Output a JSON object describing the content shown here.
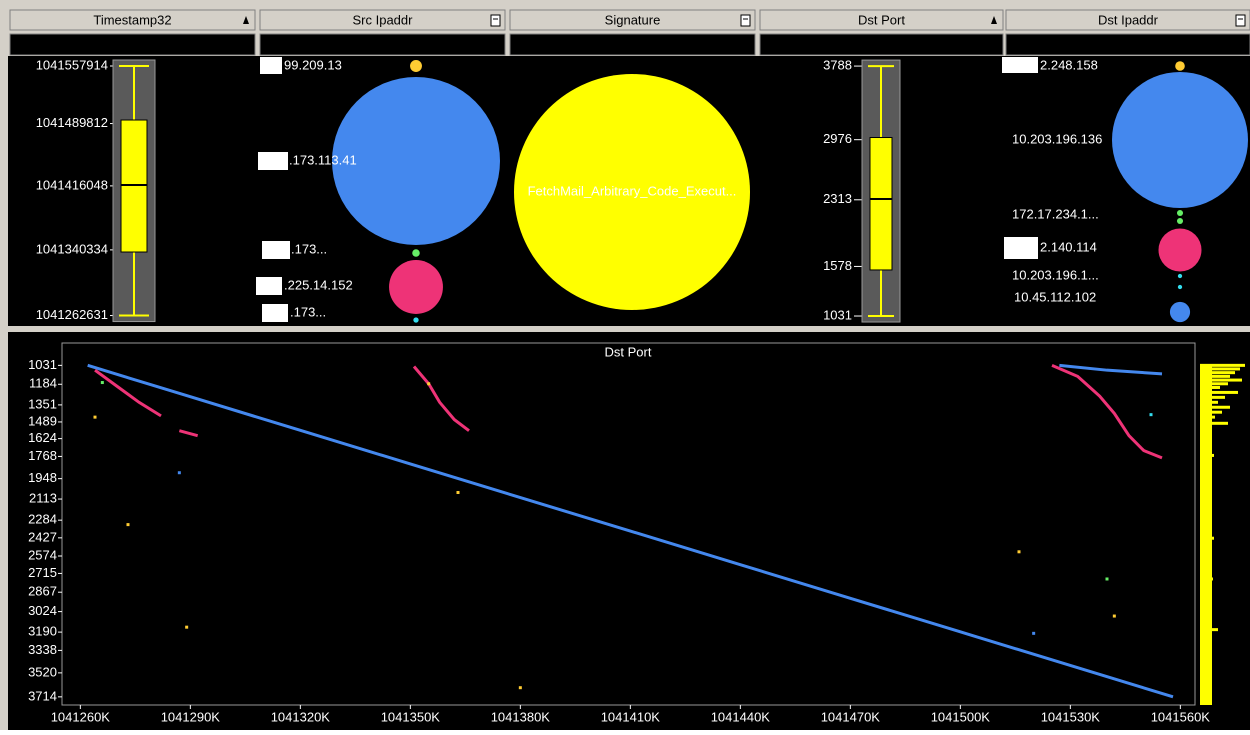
{
  "columns": [
    {
      "header": "Timestamp32",
      "icon": "sort"
    },
    {
      "header": "Src Ipaddr",
      "icon": "menu"
    },
    {
      "header": "Signature",
      "icon": "menu"
    },
    {
      "header": "Dst Port",
      "icon": "sort"
    },
    {
      "header": "Dst Ipaddr",
      "icon": "menu"
    }
  ],
  "timestamp": {
    "lim": [
      1041255000,
      1041565000
    ],
    "ticks": [
      1041557914,
      1041489812,
      1041416048,
      1041340334,
      1041262631
    ],
    "box": {
      "min": 1041262631,
      "q1": 1041337800,
      "median": 1041417100,
      "q3": 1041494000,
      "max": 1041557914
    }
  },
  "dst_port": {
    "lim": [
      965,
      3855
    ],
    "ticks": [
      3788,
      2976,
      2313,
      1578,
      1031
    ],
    "box": {
      "min": 1031,
      "q1": 1539,
      "median": 2322,
      "q3": 3000,
      "max": 3788
    }
  },
  "src_ipaddr": {
    "labels": [
      "99.209.13",
      ".173.113.41",
      ".173...",
      ".225.14.152",
      ".173..."
    ],
    "circles": [
      {
        "color": "#ffcc33",
        "count": 5
      },
      {
        "color": "#4488ee",
        "count": 1000
      },
      {
        "color": "#66ee66",
        "count": 2
      },
      {
        "color": "#ee3377",
        "count": 103
      },
      {
        "color": "#33ddee",
        "count": 1
      }
    ]
  },
  "signature": {
    "labels": [
      "FetchMail_Arbitrary_Code_Execut..."
    ],
    "circles": [
      {
        "color": "#ffff00",
        "count": 1000
      }
    ]
  },
  "dst_ipaddr": {
    "labels": [
      "2.248.158",
      "10.203.196.136",
      "172.17.234.1...",
      "2.140.114",
      "10.203.196.1...",
      "10.45.112.102"
    ],
    "circles": [
      {
        "color": "#ffcc33",
        "count": 5
      },
      {
        "color": "#4488ee",
        "count": 1000
      },
      {
        "color": "#66ee66",
        "count": 2
      },
      {
        "color": "#66ee66",
        "count": 2
      },
      {
        "color": "#ee3377",
        "count": 100
      },
      {
        "color": "#33ddee",
        "count": 1
      },
      {
        "color": "#33ddee",
        "count": 1
      },
      {
        "color": "#4488ee",
        "count": 22
      }
    ]
  },
  "chart_data": {
    "type": "scatter",
    "title": "Dst Port",
    "xlim": [
      1041255000,
      1041564000
    ],
    "xticks": [
      {
        "value": 1041260000,
        "label": "1041260K"
      },
      {
        "value": 1041290000,
        "label": "1041290K"
      },
      {
        "value": 1041320000,
        "label": "1041320K"
      },
      {
        "value": 1041350000,
        "label": "1041350K"
      },
      {
        "value": 1041380000,
        "label": "1041380K"
      },
      {
        "value": 1041410000,
        "label": "1041410K"
      },
      {
        "value": 1041440000,
        "label": "1041440K"
      },
      {
        "value": 1041470000,
        "label": "1041470K"
      },
      {
        "value": 1041500000,
        "label": "1041500K"
      },
      {
        "value": 1041530000,
        "label": "1041530K"
      },
      {
        "value": 1041560000,
        "label": "1041560K"
      }
    ],
    "ylim": [
      3780,
      850
    ],
    "yticks": [
      1031,
      1184,
      1351,
      1489,
      1624,
      1768,
      1948,
      2113,
      2284,
      2427,
      2574,
      2715,
      2867,
      3024,
      3190,
      3338,
      3520,
      3714
    ],
    "series": [
      {
        "color": "#4488ee",
        "mode": "line",
        "x": [
          1041262000,
          1041290000,
          1041320000,
          1041350000,
          1041380000,
          1041410000,
          1041440000,
          1041470000,
          1041500000,
          1041530000,
          1041558000
        ],
        "y": [
          1031,
          1285,
          1557,
          1829,
          2101,
          2372,
          2644,
          2916,
          3188,
          3460,
          3714
        ]
      },
      {
        "color": "#4488ee",
        "mode": "line",
        "x": [
          1041527000,
          1041540000,
          1041555000
        ],
        "y": [
          1031,
          1070,
          1100
        ]
      },
      {
        "color": "#ee3377",
        "mode": "line",
        "x": [
          1041264000,
          1041270000,
          1041276000,
          1041282000,
          null,
          1041287000,
          1041292000,
          null,
          1041351000,
          1041355000,
          1041358000,
          1041362000,
          1041366000,
          null,
          1041525000,
          1041532000,
          1041538000,
          1041542000,
          1041546000,
          1041550000,
          1041555000
        ],
        "y": [
          1070,
          1200,
          1330,
          1440,
          null,
          1560,
          1600,
          null,
          1040,
          1180,
          1330,
          1470,
          1560,
          null,
          1031,
          1120,
          1280,
          1420,
          1600,
          1720,
          1780
        ]
      },
      {
        "color": "#ffcc33",
        "mode": "points",
        "x": [
          1041264000,
          1041273000,
          1041289000,
          1041355000,
          1041363000,
          1041380000,
          1041516000,
          1041542000
        ],
        "y": [
          1450,
          2320,
          3150,
          1180,
          2060,
          3640,
          2540,
          3060
        ]
      },
      {
        "color": "#66ee66",
        "mode": "points",
        "x": [
          1041266000,
          1041540000
        ],
        "y": [
          1170,
          2760
        ]
      },
      {
        "color": "#33ddee",
        "mode": "points",
        "x": [
          1041552000
        ],
        "y": [
          1430
        ]
      },
      {
        "color": "#4488ee",
        "mode": "points",
        "x": [
          1041287000,
          1041520000
        ],
        "y": [
          1900,
          3200
        ]
      }
    ],
    "side_histogram": {
      "color": "#ffff00",
      "ports": [
        1031,
        1060,
        1090,
        1120,
        1150,
        1180,
        1210,
        1250,
        1290,
        1330,
        1370,
        1410,
        1450,
        1500,
        1550,
        1620,
        1760,
        1950,
        2110,
        2400,
        2430,
        2480,
        2550,
        2760,
        3170,
        3210,
        3250
      ],
      "counts": [
        45,
        40,
        35,
        30,
        42,
        28,
        20,
        38,
        25,
        18,
        30,
        22,
        15,
        28,
        12,
        10,
        14,
        8,
        12,
        9,
        14,
        10,
        12,
        13,
        18,
        12,
        8
      ]
    }
  }
}
